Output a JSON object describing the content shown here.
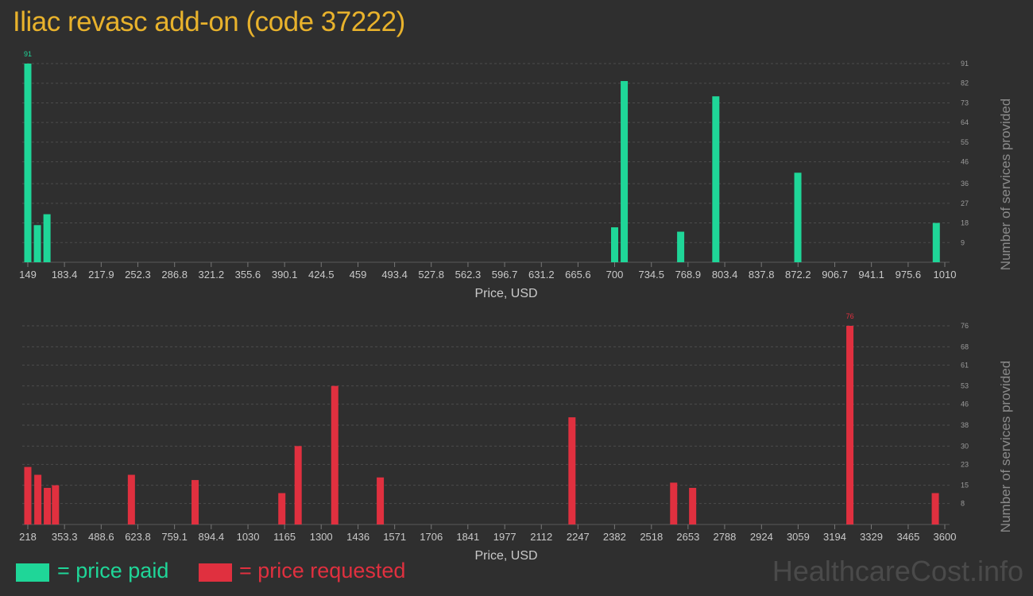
{
  "page": {
    "title": "Iliac revasc add-on (code 37222)"
  },
  "colors": {
    "paid": "#1fd698",
    "requested": "#e0303f",
    "title": "#e8b22c",
    "grid": "#4c4c4c"
  },
  "legend": {
    "paid_label": "= price paid",
    "requested_label": "= price requested"
  },
  "watermark": "HealthcareCost.info",
  "chart_data": [
    {
      "type": "bar",
      "xlabel": "Price, USD",
      "ylabel": "Number of services provided",
      "color": "#1fd698",
      "xlim": [
        149,
        1010
      ],
      "ylim": [
        0,
        91
      ],
      "x_ticks": [
        "149",
        "183.4",
        "217.9",
        "252.3",
        "286.8",
        "321.2",
        "355.6",
        "390.1",
        "424.5",
        "459",
        "493.4",
        "527.8",
        "562.3",
        "596.7",
        "631.2",
        "665.6",
        "700",
        "734.5",
        "768.9",
        "803.4",
        "837.8",
        "872.2",
        "906.7",
        "941.1",
        "975.6",
        "1010"
      ],
      "y_ticks": [
        "9",
        "18",
        "27",
        "36",
        "46",
        "55",
        "64",
        "73",
        "82",
        "91"
      ],
      "bars": [
        {
          "x": 149,
          "value": 91,
          "label": "91"
        },
        {
          "x": 158,
          "value": 17
        },
        {
          "x": 167,
          "value": 22
        },
        {
          "x": 700,
          "value": 16
        },
        {
          "x": 709,
          "value": 83
        },
        {
          "x": 762,
          "value": 14
        },
        {
          "x": 795,
          "value": 76
        },
        {
          "x": 872,
          "value": 41
        },
        {
          "x": 1002,
          "value": 18
        }
      ]
    },
    {
      "type": "bar",
      "xlabel": "Price, USD",
      "ylabel": "Number of services provided",
      "color": "#e0303f",
      "xlim": [
        218,
        3600
      ],
      "ylim": [
        0,
        76
      ],
      "x_ticks": [
        "218",
        "353.3",
        "488.6",
        "623.8",
        "759.1",
        "894.4",
        "1030",
        "1165",
        "1300",
        "1436",
        "1571",
        "1706",
        "1841",
        "1977",
        "2112",
        "2247",
        "2382",
        "2518",
        "2653",
        "2788",
        "2924",
        "3059",
        "3194",
        "3329",
        "3465",
        "3600"
      ],
      "y_ticks": [
        "8",
        "15",
        "23",
        "30",
        "38",
        "46",
        "53",
        "61",
        "68",
        "76"
      ],
      "bars": [
        {
          "x": 218,
          "value": 22
        },
        {
          "x": 255,
          "value": 19
        },
        {
          "x": 290,
          "value": 14
        },
        {
          "x": 320,
          "value": 15
        },
        {
          "x": 600,
          "value": 19
        },
        {
          "x": 835,
          "value": 17
        },
        {
          "x": 1155,
          "value": 12
        },
        {
          "x": 1215,
          "value": 30
        },
        {
          "x": 1350,
          "value": 53
        },
        {
          "x": 1518,
          "value": 18
        },
        {
          "x": 2225,
          "value": 41
        },
        {
          "x": 2600,
          "value": 16
        },
        {
          "x": 2670,
          "value": 14
        },
        {
          "x": 3250,
          "value": 76,
          "label": "76"
        },
        {
          "x": 3565,
          "value": 12
        }
      ]
    }
  ]
}
